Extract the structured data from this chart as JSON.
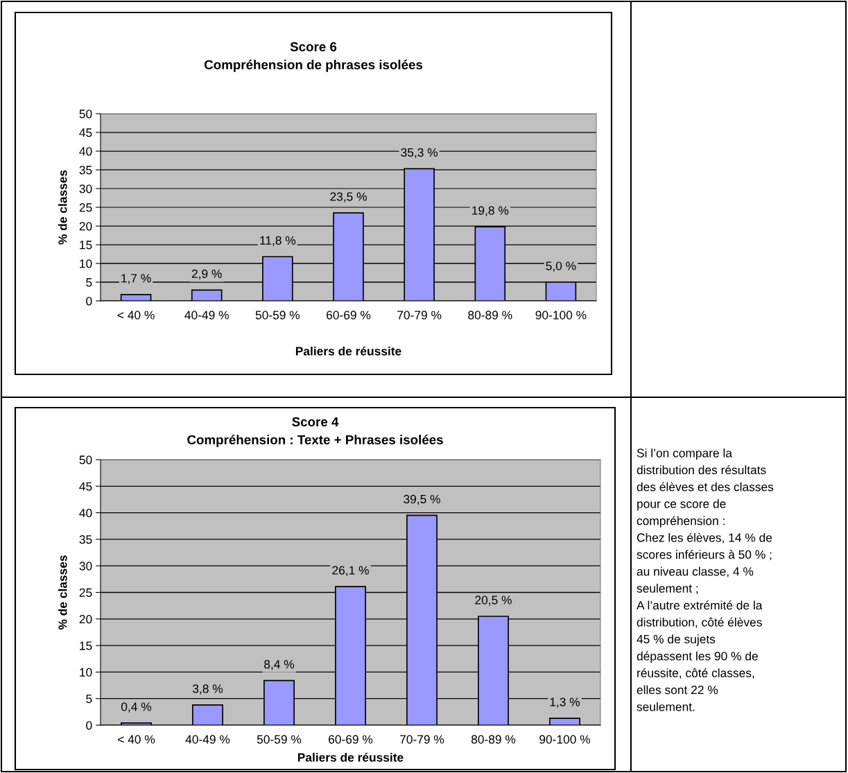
{
  "chart_data": [
    {
      "type": "bar",
      "title": "Score 6\nCompréhension de phrases isolées",
      "xlabel": "Paliers de réussite",
      "ylabel": "% de classes",
      "categories": [
        "< 40 %",
        "40-49 %",
        "50-59 %",
        "60-69 %",
        "70-79 %",
        "80-89 %",
        "90-100 %"
      ],
      "values": [
        1.7,
        2.9,
        11.8,
        23.5,
        35.3,
        19.8,
        5.0
      ],
      "value_labels": [
        "1,7 %",
        "2,9 %",
        "11,8 %",
        "23,5 %",
        "35,3 %",
        "19,8 %",
        "5,0 %"
      ],
      "color": "#9999ff",
      "ylim": [
        0,
        50
      ],
      "yticks": [
        0,
        5,
        10,
        15,
        20,
        25,
        30,
        35,
        40,
        45,
        50
      ],
      "grid": "y"
    },
    {
      "type": "bar",
      "title": "Score 4\nCompréhension : Texte + Phrases isolées",
      "xlabel": "Paliers de réussite",
      "ylabel": "% de classes",
      "categories": [
        "< 40 %",
        "40-49 %",
        "50-59 %",
        "60-69 %",
        "70-79 %",
        "80-89 %",
        "90-100 %"
      ],
      "values": [
        0.4,
        3.8,
        8.4,
        26.1,
        39.5,
        20.5,
        1.3
      ],
      "value_labels": [
        "0,4 %",
        "3,8 %",
        "8,4 %",
        "26,1 %",
        "39,5 %",
        "20,5 %",
        "1,3 %"
      ],
      "color": "#9999ff",
      "ylim": [
        0,
        50
      ],
      "yticks": [
        0,
        5,
        10,
        15,
        20,
        25,
        30,
        35,
        40,
        45,
        50
      ],
      "grid": "y"
    },
    {
      "type": "other",
      "annotations": [
        "Si l’on compare la",
        "distribution des résultats",
        "des élèves et des classes",
        "pour ce score de",
        "compréhension :",
        "Chez les élèves, 14 % de",
        "scores inférieurs à 50 % ;",
        "au niveau classe, 4 %",
        "seulement ;",
        "A l’autre extrémité de la",
        "distribution, côté élèves",
        "45 % de sujets",
        "dépassent les 90 % de",
        "réussite, côté classes,",
        "elles sont 22 %",
        "seulement."
      ]
    }
  ]
}
